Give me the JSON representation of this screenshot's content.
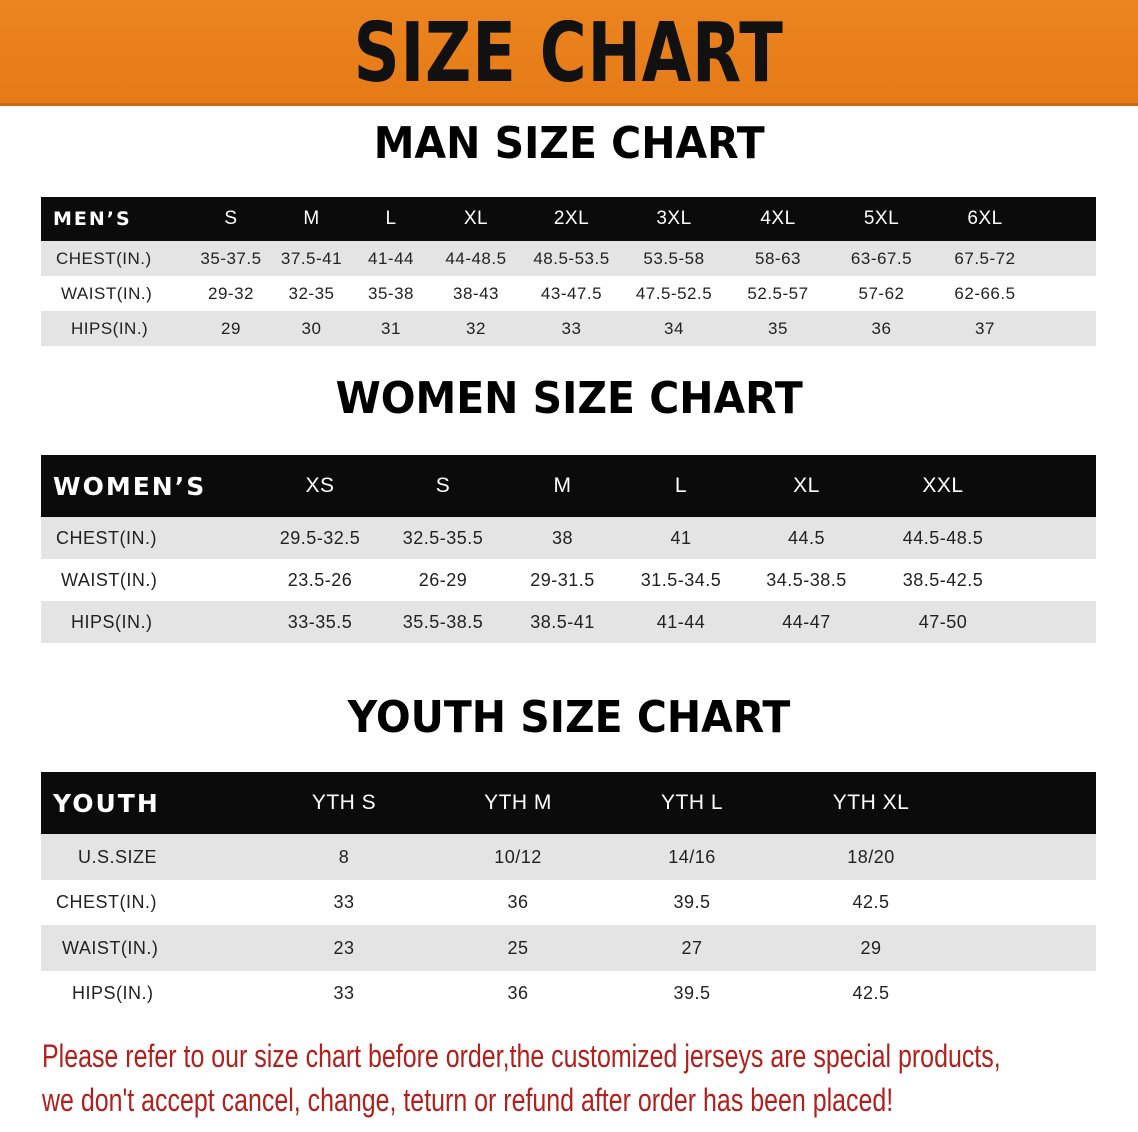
{
  "banner": {
    "title": "SIZE CHART",
    "color": "#e8801c"
  },
  "men": {
    "title": "MAN SIZE CHART",
    "header": [
      "MEN’S",
      "S",
      "M",
      "L",
      "XL",
      "2XL",
      "3XL",
      "4XL",
      "5XL",
      "6XL",
      ""
    ],
    "rows": [
      [
        "CHEST(IN.)",
        "35-37.5",
        "37.5-41",
        "41-44",
        "44-48.5",
        "48.5-53.5",
        "53.5-58",
        "58-63",
        "63-67.5",
        "67.5-72",
        ""
      ],
      [
        "WAIST(IN.)",
        "29-32",
        "32-35",
        "35-38",
        "38-43",
        "43-47.5",
        "47.5-52.5",
        "52.5-57",
        "57-62",
        "62-66.5",
        ""
      ],
      [
        "HIPS(IN.)",
        "29",
        "30",
        "31",
        "32",
        "33",
        "34",
        "35",
        "36",
        "37",
        ""
      ]
    ]
  },
  "women": {
    "title": "WOMEN SIZE CHART",
    "header": [
      "WOMEN’S",
      "XS",
      "S",
      "M",
      "L",
      "XL",
      "XXL",
      ""
    ],
    "rows": [
      [
        "CHEST(IN.)",
        "29.5-32.5",
        "32.5-35.5",
        "38",
        "41",
        "44.5",
        "44.5-48.5",
        ""
      ],
      [
        "WAIST(IN.)",
        "23.5-26",
        "26-29",
        "29-31.5",
        "31.5-34.5",
        "34.5-38.5",
        "38.5-42.5",
        ""
      ],
      [
        "HIPS(IN.)",
        "33-35.5",
        "35.5-38.5",
        "38.5-41",
        "41-44",
        "44-47",
        "47-50",
        ""
      ]
    ]
  },
  "youth": {
    "title": "YOUTH SIZE CHART",
    "header": [
      "YOUTH",
      "YTH S",
      "YTH M",
      "YTH L",
      "YTH XL",
      ""
    ],
    "rows": [
      [
        "U.S.SIZE",
        "8",
        "10/12",
        "14/16",
        "18/20",
        ""
      ],
      [
        "CHEST(IN.)",
        "33",
        "36",
        "39.5",
        "42.5",
        ""
      ],
      [
        "WAIST(IN.)",
        "23",
        "25",
        "27",
        "29",
        ""
      ],
      [
        "HIPS(IN.)",
        "33",
        "36",
        "39.5",
        "42.5",
        ""
      ]
    ]
  },
  "notice": {
    "line1": "Please refer to our size chart before order,the customized jerseys are special products,",
    "line2": "we don't accept cancel, change, teturn or refund after order has been placed!",
    "color": "#b0211e"
  }
}
